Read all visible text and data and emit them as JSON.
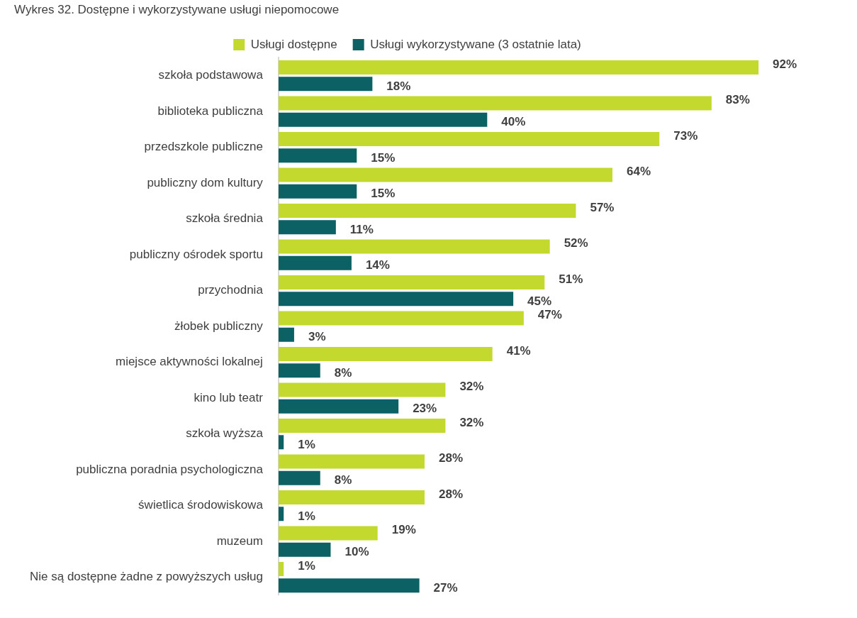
{
  "chart_data": {
    "type": "bar",
    "orientation": "horizontal",
    "title": "Wykres 32. Dostępne i wykorzystywane usługi niepomocowe",
    "categories": [
      "szkoła podstawowa",
      "biblioteka publiczna",
      "przedszkole publiczne",
      "publiczny dom kultury",
      "szkoła średnia",
      "publiczny ośrodek sportu",
      "przychodnia",
      "żłobek publiczny",
      "miejsce aktywności lokalnej",
      "kino lub teatr",
      "szkoła wyższa",
      "publiczna poradnia psychologiczna",
      "świetlica środowiskowa",
      "muzeum",
      "Nie są dostępne żadne z powyższych usług"
    ],
    "series": [
      {
        "name": "Usługi dostępne",
        "color": "#c4d92e",
        "values": [
          92,
          83,
          73,
          64,
          57,
          52,
          51,
          47,
          41,
          32,
          32,
          28,
          28,
          19,
          1
        ],
        "value_labels": [
          "92%",
          "83%",
          "73%",
          "64%",
          "57%",
          "52%",
          "51%",
          "47%",
          "41%",
          "32%",
          "32%",
          "28%",
          "28%",
          "19%",
          "1%"
        ]
      },
      {
        "name": "Usługi wykorzystywane (3 ostatnie lata)",
        "color": "#0b6163",
        "values": [
          18,
          40,
          15,
          15,
          11,
          14,
          45,
          3,
          8,
          23,
          1,
          8,
          1,
          10,
          27
        ],
        "value_labels": [
          "18%",
          "40%",
          "15%",
          "15%",
          "11%",
          "14%",
          "45%",
          "3%",
          "8%",
          "23%",
          "1%",
          "8%",
          "1%",
          "10%",
          "27%"
        ]
      }
    ],
    "legend": "top"
  }
}
